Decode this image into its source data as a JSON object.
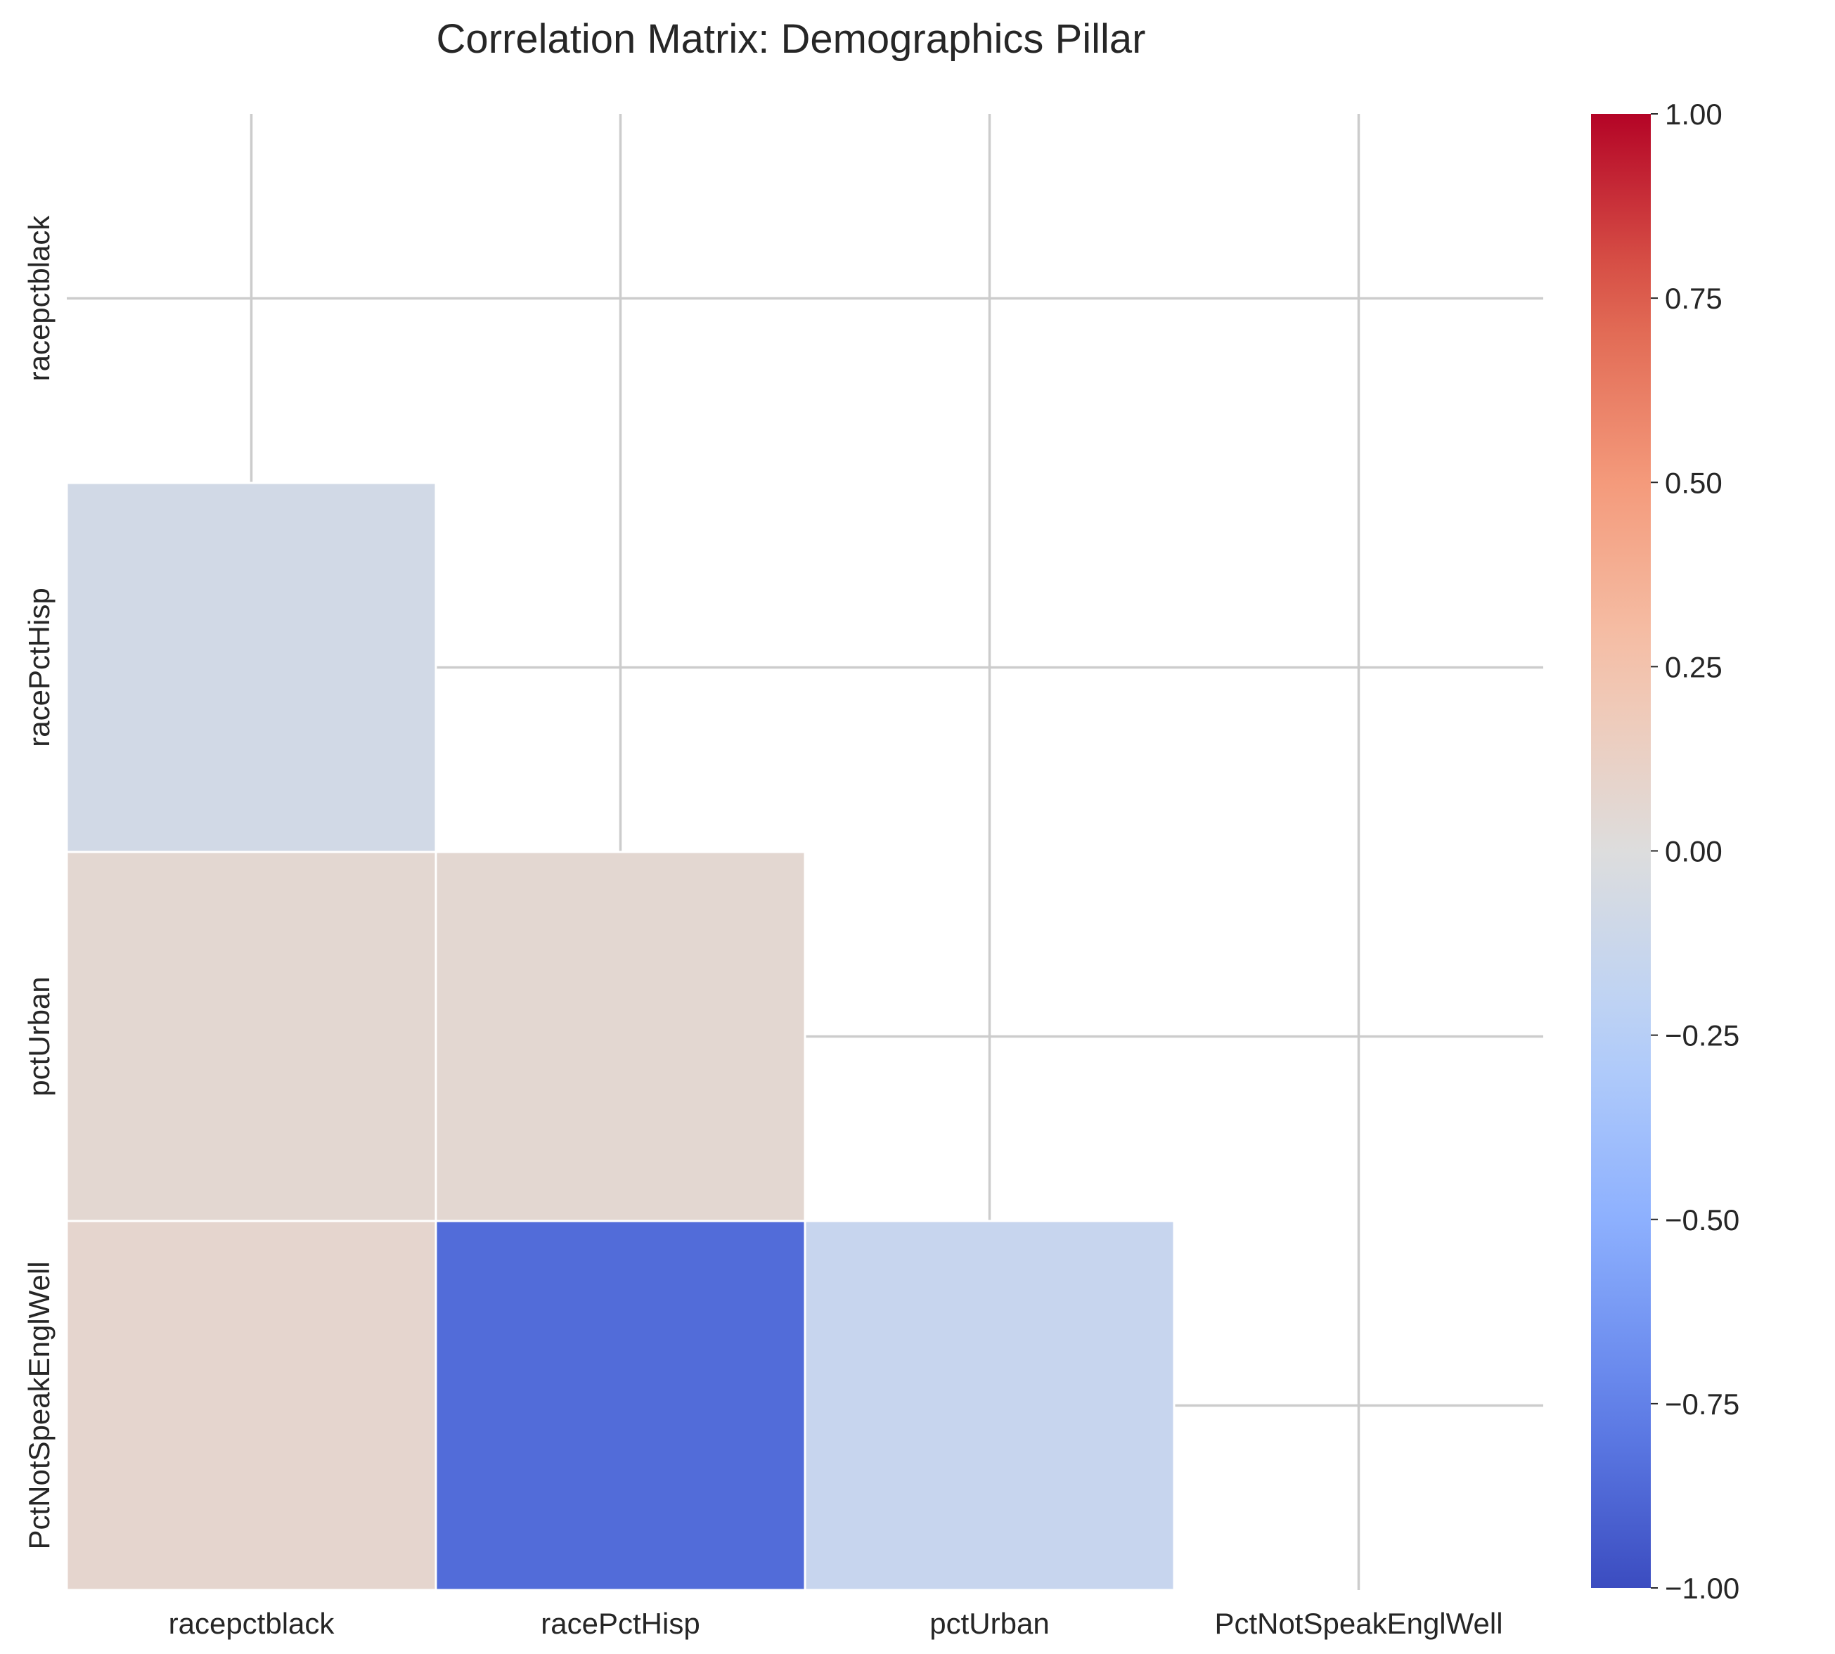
{
  "chart_data": {
    "type": "heatmap",
    "title": "Correlation Matrix: Demographics Pillar",
    "mask": "upper-triangle-including-diagonal",
    "x_tick_labels": [
      "racepctblack",
      "racePctHisp",
      "pctUrban",
      "PctNotSpeakEnglWell"
    ],
    "y_tick_labels": [
      "racepctblack",
      "racePctHisp",
      "pctUrban",
      "PctNotSpeakEnglWell"
    ],
    "cells": [
      {
        "row": "racePctHisp",
        "col": "racepctblack",
        "value": -0.08
      },
      {
        "row": "pctUrban",
        "col": "racepctblack",
        "value": 0.06
      },
      {
        "row": "pctUrban",
        "col": "racePctHisp",
        "value": 0.06
      },
      {
        "row": "PctNotSpeakEnglWell",
        "col": "racepctblack",
        "value": 0.08
      },
      {
        "row": "PctNotSpeakEnglWell",
        "col": "racePctHisp",
        "value": -0.85
      },
      {
        "row": "PctNotSpeakEnglWell",
        "col": "pctUrban",
        "value": -0.15
      }
    ],
    "colormap": "coolwarm",
    "vmin": -1.0,
    "vmax": 1.0,
    "colorbar_ticks": [
      "−1.00",
      "−0.75",
      "−0.50",
      "−0.25",
      "0.00",
      "0.25",
      "0.50",
      "0.75",
      "1.00"
    ],
    "colorbar_tick_values": [
      -1.0,
      -0.75,
      -0.5,
      -0.25,
      0.0,
      0.25,
      0.5,
      0.75,
      1.0
    ],
    "grid": true
  }
}
